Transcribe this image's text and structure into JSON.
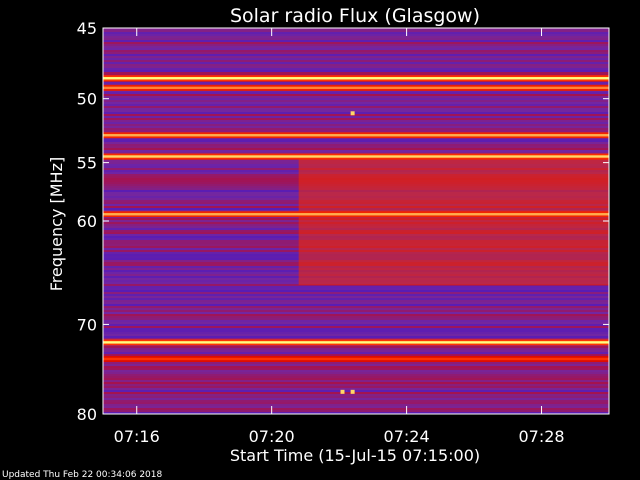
{
  "chart_data": {
    "type": "heatmap",
    "title": "Solar radio Flux (Glasgow)",
    "xlabel": "Start Time (15-Jul-15 07:15:00)",
    "ylabel": "Frequency [MHz]",
    "x_ticks": [
      "07:16",
      "07:20",
      "07:24",
      "07:28"
    ],
    "x_tick_minutes": [
      1,
      5,
      9,
      13
    ],
    "xlim_minutes": [
      0,
      15
    ],
    "y_ticks": [
      45,
      50,
      55,
      60,
      70,
      80
    ],
    "ylim_mhz": [
      45,
      80
    ],
    "y_scale": "log",
    "colormap": [
      "#0000ff",
      "#6a2ab0",
      "#d40000",
      "#ff3300",
      "#ffff80"
    ],
    "background_level": 0.3,
    "intense_bands_mhz": [
      {
        "f": 48.5,
        "level": 1.0
      },
      {
        "f": 49.2,
        "level": 0.85
      },
      {
        "f": 52.8,
        "level": 0.9
      },
      {
        "f": 54.5,
        "level": 0.95
      },
      {
        "f": 59.4,
        "level": 0.9
      },
      {
        "f": 71.9,
        "level": 1.0
      },
      {
        "f": 73.7,
        "level": 0.75
      }
    ],
    "elevated_region": {
      "f_from": 54.5,
      "f_to": 66,
      "minute_from": 5.8,
      "level": 0.7
    },
    "burst_points": [
      {
        "minute": 7.4,
        "f": 51.1
      },
      {
        "minute": 7.4,
        "f": 77.4
      },
      {
        "minute": 7.1,
        "f": 77.4
      }
    ],
    "footer": "Updated Thu Feb 22 00:34:06 2018"
  }
}
